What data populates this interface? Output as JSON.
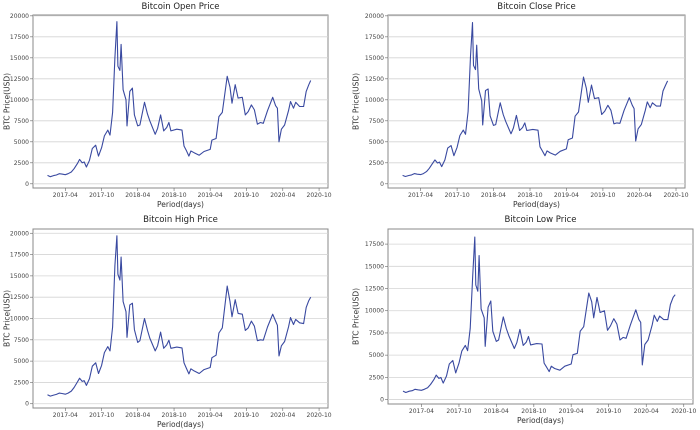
{
  "line_color": "#3949a0",
  "dates": [
    "2017-01-01",
    "2017-01-15",
    "2017-02-01",
    "2017-02-15",
    "2017-03-01",
    "2017-03-15",
    "2017-04-01",
    "2017-04-15",
    "2017-05-01",
    "2017-05-15",
    "2017-06-01",
    "2017-06-12",
    "2017-06-25",
    "2017-07-05",
    "2017-07-16",
    "2017-08-01",
    "2017-08-15",
    "2017-09-01",
    "2017-09-15",
    "2017-10-01",
    "2017-10-15",
    "2017-11-01",
    "2017-11-12",
    "2017-11-25",
    "2017-12-07",
    "2017-12-17",
    "2017-12-22",
    "2018-01-01",
    "2018-01-07",
    "2018-01-17",
    "2018-02-01",
    "2018-02-06",
    "2018-02-20",
    "2018-03-05",
    "2018-03-15",
    "2018-04-01",
    "2018-04-12",
    "2018-05-05",
    "2018-05-20",
    "2018-06-01",
    "2018-06-28",
    "2018-07-10",
    "2018-07-25",
    "2018-08-10",
    "2018-08-25",
    "2018-09-05",
    "2018-09-15",
    "2018-10-15",
    "2018-11-10",
    "2018-11-20",
    "2018-12-01",
    "2018-12-15",
    "2018-12-25",
    "2019-01-10",
    "2019-02-05",
    "2019-03-01",
    "2019-04-01",
    "2019-04-10",
    "2019-05-01",
    "2019-05-15",
    "2019-06-01",
    "2019-06-26",
    "2019-07-10",
    "2019-07-20",
    "2019-08-05",
    "2019-08-20",
    "2019-09-10",
    "2019-09-25",
    "2019-10-10",
    "2019-10-26",
    "2019-11-10",
    "2019-11-25",
    "2019-12-10",
    "2019-12-25",
    "2020-01-15",
    "2020-02-10",
    "2020-02-25",
    "2020-03-05",
    "2020-03-13",
    "2020-03-25",
    "2020-04-10",
    "2020-04-30",
    "2020-05-10",
    "2020-05-25",
    "2020-06-05",
    "2020-06-25",
    "2020-07-15",
    "2020-07-28",
    "2020-08-10",
    "2020-08-20"
  ],
  "chart_data": [
    {
      "type": "line",
      "title": "Bitcoin Open Price",
      "xlabel": "Period(days)",
      "ylabel": "BTC Price(USD)",
      "xlim": [
        "2016-10-20",
        "2020-11-15"
      ],
      "ylim": [
        -500,
        20100
      ],
      "xticks": [
        "2017-04",
        "2017-10",
        "2018-04",
        "2018-10",
        "2019-04",
        "2019-10",
        "2020-04",
        "2020-10"
      ],
      "yticks": [
        0,
        2500,
        5000,
        7500,
        10000,
        12500,
        15000,
        17500,
        20000
      ],
      "grid": "horizontal",
      "values": [
        1000,
        850,
        980,
        1050,
        1200,
        1150,
        1080,
        1200,
        1400,
        1800,
        2400,
        2900,
        2500,
        2600,
        2000,
        2800,
        4200,
        4600,
        3300,
        4300,
        5700,
        6400,
        5800,
        8500,
        15000,
        19300,
        14000,
        13500,
        16600,
        11200,
        10000,
        6900,
        11000,
        11400,
        8200,
        6900,
        7000,
        9700,
        8300,
        7500,
        5900,
        6600,
        8200,
        6300,
        6700,
        7300,
        6300,
        6500,
        6400,
        4500,
        4000,
        3300,
        3900,
        3700,
        3400,
        3850,
        4100,
        5200,
        5400,
        8000,
        8500,
        12800,
        11500,
        9600,
        11800,
        10200,
        10300,
        8200,
        8600,
        9400,
        8800,
        7100,
        7300,
        7200,
        8700,
        10300,
        9300,
        9000,
        5000,
        6500,
        7000,
        8700,
        9800,
        9000,
        9700,
        9200,
        9200,
        11000,
        11800,
        12300
      ]
    },
    {
      "type": "line",
      "title": "Bitcoin Close Price",
      "xlabel": "Period(days)",
      "ylabel": "BTC Price(USD)",
      "xlim": [
        "2016-10-20",
        "2020-11-15"
      ],
      "ylim": [
        -500,
        20100
      ],
      "xticks": [
        "2017-04",
        "2017-10",
        "2018-04",
        "2018-10",
        "2019-04",
        "2019-10",
        "2020-04",
        "2020-10"
      ],
      "yticks": [
        0,
        2500,
        5000,
        7500,
        10000,
        12500,
        15000,
        17500,
        20000
      ],
      "grid": "horizontal",
      "values": [
        1000,
        870,
        990,
        1060,
        1210,
        1140,
        1090,
        1220,
        1450,
        1850,
        2450,
        2850,
        2480,
        2580,
        2050,
        2850,
        4250,
        4550,
        3350,
        4350,
        5750,
        6400,
        5900,
        8600,
        15200,
        19200,
        14100,
        13600,
        16500,
        11300,
        9900,
        7000,
        11100,
        11300,
        8100,
        6950,
        7050,
        9650,
        8250,
        7450,
        5950,
        6650,
        8150,
        6350,
        6700,
        7250,
        6350,
        6480,
        6380,
        4400,
        3950,
        3350,
        3920,
        3680,
        3420,
        3870,
        4150,
        5250,
        5450,
        8050,
        8550,
        12700,
        11400,
        9700,
        11750,
        10150,
        10250,
        8250,
        8650,
        9350,
        8750,
        7150,
        7250,
        7200,
        8750,
        10250,
        9350,
        8950,
        5100,
        6550,
        7050,
        8750,
        9750,
        9050,
        9650,
        9250,
        9250,
        11050,
        11750,
        12250
      ]
    },
    {
      "type": "line",
      "title": "Bitcoin High Price",
      "xlabel": "Period(days)",
      "ylabel": "BTC Price(USD)",
      "xlim": [
        "2016-10-20",
        "2020-11-15"
      ],
      "ylim": [
        -500,
        20500
      ],
      "xticks": [
        "2017-04",
        "2017-10",
        "2018-04",
        "2018-10",
        "2019-04",
        "2019-10",
        "2020-04",
        "2020-10"
      ],
      "yticks": [
        0,
        2500,
        5000,
        7500,
        10000,
        12500,
        15000,
        17500,
        20000
      ],
      "grid": "horizontal",
      "values": [
        1050,
        900,
        1010,
        1090,
        1250,
        1200,
        1120,
        1250,
        1480,
        1900,
        2550,
        3000,
        2620,
        2700,
        2150,
        2950,
        4400,
        4800,
        3550,
        4500,
        6000,
        6700,
        6200,
        9000,
        16200,
        19700,
        15200,
        14500,
        17200,
        12000,
        10800,
        7800,
        11600,
        11800,
        8700,
        7200,
        7400,
        10000,
        8600,
        7700,
        6200,
        6800,
        8400,
        6500,
        6900,
        7450,
        6500,
        6650,
        6550,
        4800,
        4200,
        3500,
        4100,
        3850,
        3550,
        4000,
        4250,
        5400,
        5700,
        8300,
        8900,
        13800,
        12000,
        10200,
        12200,
        10600,
        10500,
        8600,
        8900,
        9700,
        9100,
        7400,
        7500,
        7450,
        9000,
        10500,
        9700,
        9200,
        5600,
        6800,
        7300,
        9000,
        10100,
        9300,
        9900,
        9500,
        9400,
        11300,
        12100,
        12500
      ]
    },
    {
      "type": "line",
      "title": "Bitcoin Low Price",
      "xlabel": "Period(days)",
      "ylabel": "BTC Price(USD)",
      "xlim": [
        "2016-10-20",
        "2020-11-15"
      ],
      "ylim": [
        -500,
        19200
      ],
      "xticks": [
        "2017-04",
        "2017-10",
        "2018-04",
        "2018-10",
        "2019-04",
        "2019-10",
        "2020-04",
        "2020-10"
      ],
      "yticks": [
        0,
        2500,
        5000,
        7500,
        10000,
        12500,
        15000,
        17500
      ],
      "grid": "horizontal",
      "values": [
        950,
        800,
        940,
        1000,
        1150,
        1100,
        1040,
        1150,
        1330,
        1700,
        2250,
        2750,
        2380,
        2480,
        1850,
        2650,
        4000,
        4400,
        3000,
        4100,
        5450,
        6100,
        5500,
        8000,
        13900,
        18300,
        12900,
        12200,
        16200,
        10200,
        9200,
        6000,
        10400,
        11100,
        7700,
        6550,
        6700,
        9300,
        8000,
        7200,
        5750,
        6400,
        7900,
        6100,
        6450,
        7100,
        6150,
        6300,
        6250,
        4100,
        3700,
        3150,
        3750,
        3500,
        3300,
        3750,
        4000,
        5050,
        5200,
        7700,
        8200,
        12000,
        11000,
        9200,
        11500,
        9800,
        10000,
        7800,
        8300,
        9100,
        8500,
        6700,
        7000,
        6900,
        8400,
        10100,
        9000,
        8700,
        3900,
        6200,
        6700,
        8400,
        9500,
        8800,
        9400,
        9000,
        9000,
        10700,
        11500,
        11800
      ]
    }
  ]
}
